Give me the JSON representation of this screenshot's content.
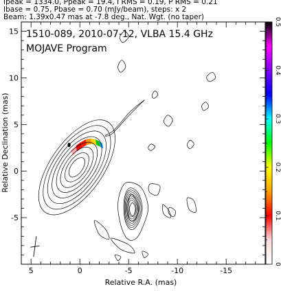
{
  "header_lines": [
    "Ipeak = 1334.0, Ppeak = 19.4, I RMS = 0.19, P RMS = 0.21",
    "Ibase = 0.75, Pbase = 0.70 (mJy/beam), steps: x 2",
    "Beam: 1.39x0.47 mas at -7.8 deg., Nat. Wgt. (no taper)"
  ],
  "chart_data": {
    "type": "contour",
    "annotations": [
      "1510-089, 2010-07-12, VLBA 15.4 GHz",
      "MOJAVE Program"
    ],
    "xlabel": "Relative R.A. (mas)",
    "ylabel": "Relative Declination (mas)",
    "xlim": [
      6,
      -19
    ],
    "ylim": [
      -10,
      16
    ],
    "x_ticks": [
      5,
      0,
      -5,
      -10,
      -15
    ],
    "x_tick_labels": [
      "5",
      "0",
      "-5",
      "-10",
      "-15"
    ],
    "y_ticks": [
      -5,
      0,
      5,
      10,
      15
    ],
    "y_tick_labels": [
      "-5",
      "0",
      "5",
      "10",
      "15"
    ],
    "colorbar": {
      "range": [
        0,
        0.5
      ],
      "ticks": [
        0,
        0.1,
        0.2,
        0.3,
        0.4,
        0.5
      ],
      "tick_labels": [
        "0",
        "0.1",
        "0.2",
        "0.3",
        "0.4",
        "0.5"
      ],
      "colors": [
        "#ffffff",
        "#ffdcdc",
        "#ff0000",
        "#ffa000",
        "#ffff00",
        "#00ff00",
        "#00ffff",
        "#0000ff",
        "#8000ff",
        "#ff00ff",
        "#000000"
      ]
    },
    "core": {
      "x": 0.3,
      "y": 0.4
    },
    "core_contours": [
      {
        "rx": 0.6,
        "ry": 1.2
      },
      {
        "rx": 0.9,
        "ry": 1.8
      },
      {
        "rx": 1.2,
        "ry": 2.5
      },
      {
        "rx": 1.5,
        "ry": 3.1
      },
      {
        "rx": 1.8,
        "ry": 3.8
      },
      {
        "rx": 2.1,
        "ry": 4.5
      },
      {
        "rx": 2.4,
        "ry": 5.2
      },
      {
        "rx": 2.7,
        "ry": 5.9
      }
    ],
    "core_angle": 35,
    "jet_contours": [
      [
        [
          -5.0,
          -1.2
        ],
        [
          -6.3,
          -1.8
        ],
        [
          -7.0,
          -3.8
        ],
        [
          -6.6,
          -5.6
        ],
        [
          -5.8,
          -7.2
        ],
        [
          -4.9,
          -7.3
        ],
        [
          -4.2,
          -5.8
        ],
        [
          -3.9,
          -3.6
        ],
        [
          -4.3,
          -1.8
        ]
      ],
      [
        [
          -5.2,
          -1.8
        ],
        [
          -6.0,
          -2.4
        ],
        [
          -6.4,
          -4.0
        ],
        [
          -6.0,
          -5.6
        ],
        [
          -5.3,
          -6.3
        ],
        [
          -4.7,
          -5.5
        ],
        [
          -4.5,
          -3.8
        ],
        [
          -4.7,
          -2.4
        ]
      ],
      [
        [
          -5.3,
          -2.5
        ],
        [
          -5.8,
          -3.2
        ],
        [
          -6.0,
          -4.3
        ],
        [
          -5.6,
          -5.3
        ],
        [
          -5.1,
          -5.2
        ],
        [
          -4.9,
          -4.2
        ],
        [
          -5.0,
          -3.1
        ]
      ],
      [
        [
          -5.4,
          -3.4
        ],
        [
          -5.7,
          -4.0
        ],
        [
          -5.5,
          -4.8
        ],
        [
          -5.2,
          -4.6
        ],
        [
          -5.1,
          -3.9
        ]
      ],
      [
        [
          -2.6,
          3.8
        ],
        [
          -3.5,
          4.4
        ],
        [
          -5.2,
          6.4
        ],
        [
          -6.6,
          7.6
        ],
        [
          -6.0,
          7.0
        ],
        [
          -4.8,
          5.7
        ],
        [
          -3.3,
          4.0
        ]
      ],
      [
        [
          -7.2,
          -1.4
        ],
        [
          -8.2,
          -1.6
        ],
        [
          -7.9,
          -2.6
        ],
        [
          -7.1,
          -2.2
        ]
      ],
      [
        [
          -3.2,
          -7.2
        ],
        [
          -5.0,
          -7.9
        ],
        [
          -5.6,
          -8.8
        ],
        [
          -4.2,
          -8.4
        ]
      ],
      [
        [
          -1.5,
          -5.3
        ],
        [
          -2.6,
          -6.2
        ],
        [
          -3.0,
          -7.3
        ],
        [
          -2.0,
          -6.8
        ]
      ]
    ],
    "noise_contours": [
      [
        [
          -4.2,
          10.6
        ],
        [
          -4.7,
          11.2
        ],
        [
          -4.3,
          11.9
        ],
        [
          -3.9,
          11.2
        ]
      ],
      [
        [
          -4.4,
          13.8
        ],
        [
          -5.0,
          14.4
        ],
        [
          -4.6,
          15.0
        ],
        [
          -4.1,
          14.4
        ]
      ],
      [
        [
          -9.1,
          4.8
        ],
        [
          -9.5,
          5.5
        ],
        [
          -9.0,
          6.0
        ],
        [
          -8.6,
          5.3
        ]
      ],
      [
        [
          -11.0,
          -2.9
        ],
        [
          -11.7,
          -3.2
        ],
        [
          -11.9,
          -4.4
        ],
        [
          -11.2,
          -4.1
        ]
      ],
      [
        [
          -8.5,
          -3.6
        ],
        [
          -9.1,
          -4.2
        ],
        [
          -9.3,
          -5.0
        ],
        [
          -8.6,
          -4.6
        ]
      ],
      [
        [
          -9.2,
          -3.9
        ],
        [
          -9.8,
          -4.3
        ],
        [
          -9.6,
          -4.9
        ],
        [
          -9.1,
          -4.5
        ]
      ],
      [
        [
          -13.3,
          9.6
        ],
        [
          -13.9,
          10.0
        ],
        [
          -13.6,
          10.6
        ],
        [
          -13.0,
          10.1
        ]
      ],
      [
        [
          -12.7,
          6.5
        ],
        [
          -13.2,
          6.9
        ],
        [
          -12.9,
          7.4
        ],
        [
          -12.5,
          7.0
        ]
      ],
      [
        [
          -11.3,
          2.4
        ],
        [
          -11.7,
          2.9
        ],
        [
          -11.3,
          3.3
        ],
        [
          -11.0,
          2.8
        ]
      ],
      [
        [
          -7.6,
          7.8
        ],
        [
          -8.0,
          8.2
        ],
        [
          -7.7,
          8.6
        ],
        [
          -7.4,
          8.1
        ]
      ],
      [
        [
          -7.3,
          2.2
        ],
        [
          -7.7,
          2.6
        ],
        [
          -7.3,
          2.9
        ],
        [
          -7.0,
          2.5
        ]
      ],
      [
        [
          -3.6,
          -9.0
        ],
        [
          -4.2,
          -9.2
        ],
        [
          -3.9,
          -9.6
        ]
      ],
      [
        [
          -6.4,
          -8.6
        ],
        [
          -7.0,
          -8.9
        ],
        [
          -6.6,
          -9.3
        ]
      ]
    ],
    "color_ribbon": [
      {
        "color": "#00c000",
        "points": [
          [
            -2.1,
            2.6
          ],
          [
            -2.0,
            3.2
          ],
          [
            -1.6,
            3.4
          ],
          [
            -1.7,
            2.8
          ]
        ]
      },
      {
        "color": "#ffd000",
        "points": [
          [
            -1.7,
            2.8
          ],
          [
            -1.6,
            3.4
          ],
          [
            -1.1,
            3.5
          ],
          [
            -1.2,
            2.9
          ]
        ]
      },
      {
        "color": "#ff9000",
        "points": [
          [
            -1.2,
            2.9
          ],
          [
            -1.1,
            3.5
          ],
          [
            -0.6,
            3.4
          ],
          [
            -0.7,
            2.8
          ]
        ]
      },
      {
        "color": "#ff2000",
        "points": [
          [
            -0.7,
            2.8
          ],
          [
            -0.6,
            3.4
          ],
          [
            -0.1,
            3.1
          ],
          [
            -0.2,
            2.5
          ]
        ]
      },
      {
        "color": "#e00000",
        "points": [
          [
            -0.2,
            2.5
          ],
          [
            -0.1,
            3.1
          ],
          [
            0.4,
            2.7
          ],
          [
            0.3,
            2.1
          ]
        ]
      },
      {
        "color": "#ffb0b0",
        "points": [
          [
            0.3,
            2.1
          ],
          [
            0.4,
            2.7
          ],
          [
            0.9,
            2.2
          ],
          [
            0.7,
            1.6
          ]
        ]
      },
      {
        "color": "#00a0ff",
        "points": [
          [
            -2.4,
            2.4
          ],
          [
            -2.3,
            3.0
          ],
          [
            -2.0,
            3.2
          ],
          [
            -2.1,
            2.6
          ]
        ]
      }
    ],
    "beam": {
      "x": 4.6,
      "y": -8.1,
      "major": 1.39,
      "minor": 0.47,
      "pa": -7.8
    }
  }
}
